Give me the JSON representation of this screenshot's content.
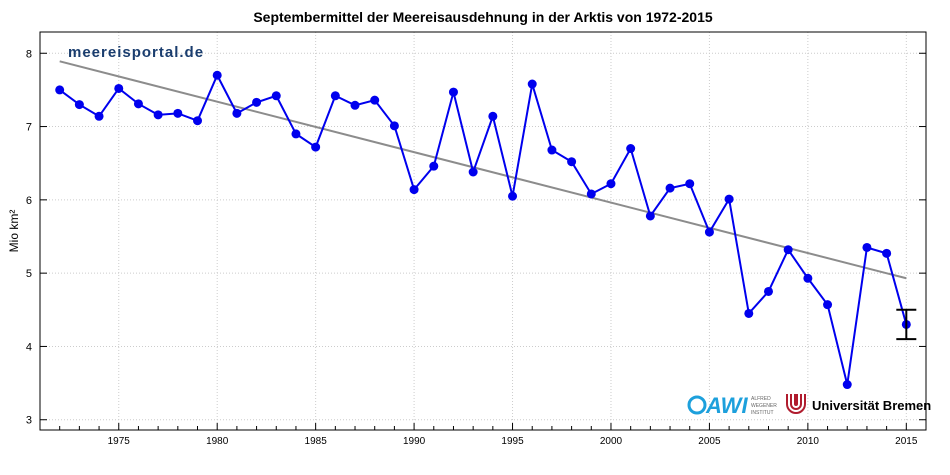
{
  "chart_data": {
    "type": "line",
    "title": "Septembermittel der Meereisausdehnung in der Arktis von 1972-2015",
    "xlabel": "",
    "ylabel": "Mio km²",
    "xlim": [
      1971,
      2016
    ],
    "ylim": [
      2.86,
      8.29
    ],
    "xticks": [
      1975,
      1980,
      1985,
      1990,
      1995,
      2000,
      2005,
      2010,
      2015
    ],
    "yticks": [
      3,
      4,
      5,
      6,
      7,
      8
    ],
    "grid": true,
    "series": [
      {
        "color": "#0000ee",
        "x": [
          1972,
          1973,
          1974,
          1975,
          1976,
          1977,
          1978,
          1979,
          1980,
          1981,
          1982,
          1983,
          1984,
          1985,
          1986,
          1987,
          1988,
          1989,
          1990,
          1991,
          1992,
          1993,
          1994,
          1995,
          1996,
          1997,
          1998,
          1999,
          2000,
          2001,
          2002,
          2003,
          2004,
          2005,
          2006,
          2007,
          2008,
          2009,
          2010,
          2011,
          2012,
          2013,
          2014,
          2015
        ],
        "y": [
          7.5,
          7.3,
          7.14,
          7.52,
          7.31,
          7.16,
          7.18,
          7.08,
          7.7,
          7.18,
          7.33,
          7.42,
          6.9,
          6.72,
          7.42,
          7.29,
          7.36,
          7.01,
          6.14,
          6.46,
          7.47,
          6.38,
          7.14,
          6.05,
          7.58,
          6.68,
          6.52,
          6.08,
          6.22,
          6.7,
          5.78,
          6.16,
          6.22,
          5.56,
          6.01,
          4.45,
          4.75,
          5.32,
          4.93,
          4.57,
          3.48,
          5.35,
          5.27,
          4.3
        ]
      }
    ],
    "trend": {
      "color": "#8c8c8c",
      "x": [
        1972,
        2015
      ],
      "y": [
        7.89,
        4.93
      ]
    },
    "error_bar": {
      "x": 2015,
      "low": 4.1,
      "high": 4.5
    }
  },
  "watermark": "meereisportal.de",
  "logos": {
    "awi": "AWI",
    "awi_sub": [
      "ALFRED",
      "WEGENER",
      "INSTITUT"
    ],
    "uni": "Universität Bremen"
  }
}
